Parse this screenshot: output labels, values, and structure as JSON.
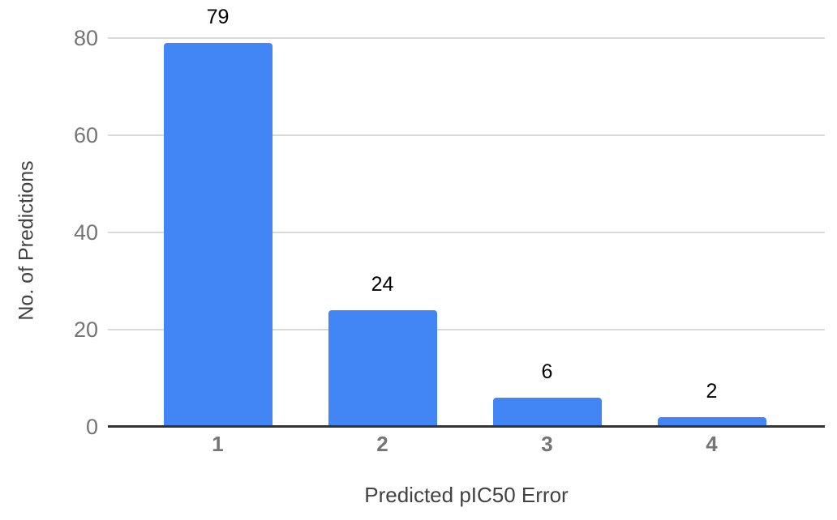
{
  "chart_data": {
    "type": "bar",
    "categories": [
      "1",
      "2",
      "3",
      "4"
    ],
    "values": [
      79,
      24,
      6,
      2
    ],
    "data_labels": [
      "79",
      "24",
      "6",
      "2"
    ],
    "xlabel": "Predicted pIC50 Error",
    "ylabel": "No. of Predictions",
    "ylim": [
      0,
      80
    ],
    "yticks": [
      0,
      20,
      40,
      60,
      80
    ],
    "grid": "horizontal",
    "legend": "none",
    "colors": {
      "bar": "#4285F4",
      "gridline": "#DADADA",
      "axis_line": "#333333",
      "tick_label": "#757575",
      "data_label": "#000000",
      "axis_title": "#424242",
      "background": "#FFFFFF"
    }
  }
}
